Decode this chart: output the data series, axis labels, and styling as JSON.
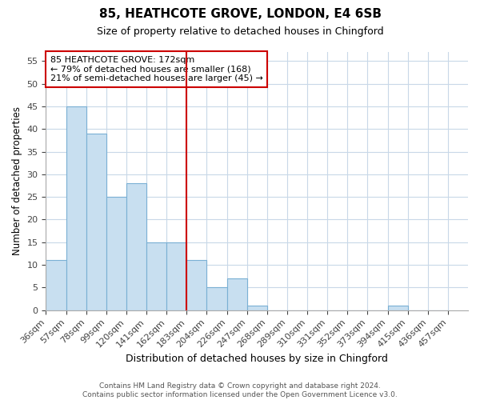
{
  "title": "85, HEATHCOTE GROVE, LONDON, E4 6SB",
  "subtitle": "Size of property relative to detached houses in Chingford",
  "xlabel": "Distribution of detached houses by size in Chingford",
  "ylabel": "Number of detached properties",
  "bin_edges": [
    "36sqm",
    "57sqm",
    "78sqm",
    "99sqm",
    "120sqm",
    "141sqm",
    "162sqm",
    "183sqm",
    "204sqm",
    "226sqm",
    "247sqm",
    "268sqm",
    "289sqm",
    "310sqm",
    "331sqm",
    "352sqm",
    "373sqm",
    "394sqm",
    "415sqm",
    "436sqm",
    "457sqm"
  ],
  "bin_values": [
    11,
    45,
    39,
    25,
    28,
    15,
    15,
    11,
    5,
    7,
    1,
    0,
    0,
    0,
    0,
    0,
    0,
    1,
    0,
    0
  ],
  "bar_color": "#c8dff0",
  "bar_edge_color": "#7ab0d4",
  "property_line_color": "#cc0000",
  "property_line_bin_index": 6,
  "ylim": [
    0,
    57
  ],
  "yticks": [
    0,
    5,
    10,
    15,
    20,
    25,
    30,
    35,
    40,
    45,
    50,
    55
  ],
  "annotation_title": "85 HEATHCOTE GROVE: 172sqm",
  "annotation_line1": "← 79% of detached houses are smaller (168)",
  "annotation_line2": "21% of semi-detached houses are larger (45) →",
  "annotation_box_color": "#ffffff",
  "annotation_box_edge_color": "#cc0000",
  "footer_line1": "Contains HM Land Registry data © Crown copyright and database right 2024.",
  "footer_line2": "Contains public sector information licensed under the Open Government Licence v3.0.",
  "bg_color": "#ffffff",
  "grid_color": "#c8d8e8"
}
